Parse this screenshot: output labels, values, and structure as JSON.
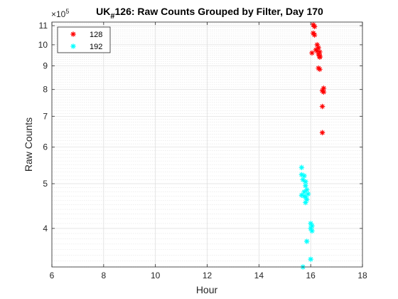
{
  "chart_data": {
    "type": "scatter",
    "title_prefix": "UK",
    "title_subscript": "#",
    "title_rest": "126: Raw Counts Grouped by Filter, Day 170",
    "xlabel": "Hour",
    "ylabel": "Raw  Counts",
    "y_exponent_base": "×10",
    "y_exponent_power": "5",
    "xlim": [
      6,
      18
    ],
    "ylim": [
      3.3,
      11.2
    ],
    "yscale": "log",
    "grid": true,
    "minor_grid": true,
    "legend_placement": "top-left",
    "x_ticks": [
      6,
      8,
      10,
      12,
      14,
      16,
      18
    ],
    "x_tick_labels": [
      "6",
      "8",
      "10",
      "12",
      "14",
      "16",
      "18"
    ],
    "y_ticks": [
      4,
      5,
      6,
      7,
      8,
      9,
      10,
      11
    ],
    "y_tick_labels": [
      "4",
      "5",
      "6",
      "7",
      "8",
      "9",
      "10",
      "11"
    ],
    "series": [
      {
        "name": "128",
        "color": "#ff0000",
        "marker": "asterisk",
        "points": [
          [
            16.1,
            11.05
          ],
          [
            16.15,
            10.95
          ],
          [
            16.1,
            10.6
          ],
          [
            16.15,
            10.5
          ],
          [
            16.25,
            10.0
          ],
          [
            16.3,
            9.85
          ],
          [
            16.2,
            9.75
          ],
          [
            16.25,
            9.7
          ],
          [
            16.35,
            9.65
          ],
          [
            16.05,
            9.6
          ],
          [
            16.3,
            9.55
          ],
          [
            16.35,
            9.45
          ],
          [
            16.35,
            9.4
          ],
          [
            16.3,
            8.9
          ],
          [
            16.35,
            8.85
          ],
          [
            16.5,
            8.05
          ],
          [
            16.45,
            7.95
          ],
          [
            16.5,
            7.9
          ],
          [
            16.45,
            7.35
          ],
          [
            16.45,
            6.45
          ]
        ]
      },
      {
        "name": "192",
        "color": "#00ffff",
        "marker": "asterisk",
        "points": [
          [
            15.65,
            5.42
          ],
          [
            15.65,
            5.23
          ],
          [
            15.75,
            5.2
          ],
          [
            15.7,
            5.1
          ],
          [
            15.8,
            5.05
          ],
          [
            15.8,
            4.95
          ],
          [
            15.85,
            4.85
          ],
          [
            15.75,
            4.8
          ],
          [
            15.9,
            4.75
          ],
          [
            15.65,
            4.72
          ],
          [
            15.75,
            4.7
          ],
          [
            15.8,
            4.68
          ],
          [
            15.85,
            4.62
          ],
          [
            15.8,
            4.55
          ],
          [
            16.0,
            4.1
          ],
          [
            16.05,
            4.05
          ],
          [
            16.0,
            4.0
          ],
          [
            16.05,
            3.95
          ],
          [
            15.85,
            3.75
          ],
          [
            16.0,
            3.43
          ],
          [
            15.7,
            3.3
          ]
        ]
      }
    ]
  }
}
